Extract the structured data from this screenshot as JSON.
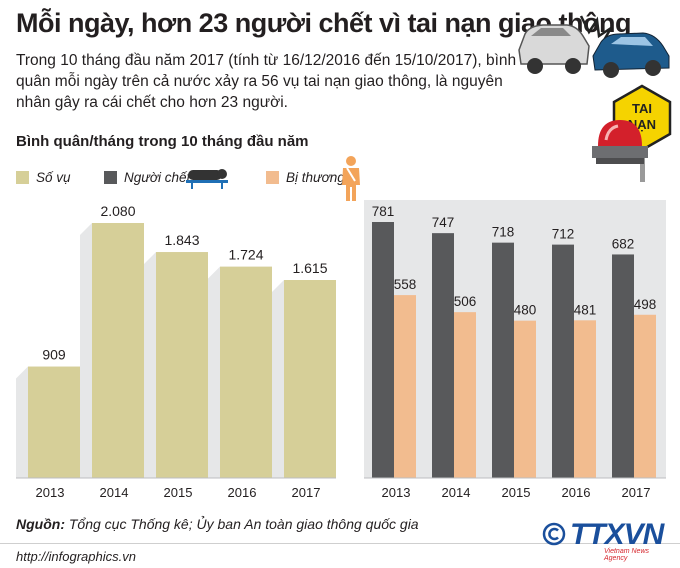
{
  "header": {
    "title": "Mỗi ngày, hơn 23 người chết vì tai nạn giao thông",
    "intro": "Trong 10 tháng đầu năm 2017 (tính từ 16/12/2016 đến 15/10/2017), bình quân mỗi ngày trên cả nước xảy ra 56 vụ tai nạn giao thông, là nguyên nhân gây ra cái chết cho hơn 23 người.",
    "subtitle": "Bình quân/tháng trong 10 tháng đầu năm"
  },
  "legend": {
    "so_vu": "Số vụ",
    "nguoi_chet": "Người chết",
    "bi_thuong": "Bị thương"
  },
  "sign": {
    "line1": "TAI",
    "line2": "NẠN"
  },
  "colors": {
    "so_vu": "#d6cf98",
    "nguoi_chet": "#58595b",
    "bi_thuong": "#f2bc8f",
    "panel": "#e6e7e8"
  },
  "chart_data": [
    {
      "type": "bar",
      "categories": [
        "2013",
        "2014",
        "2015",
        "2016",
        "2017"
      ],
      "series": [
        {
          "name": "Số vụ",
          "values": [
            909,
            2080,
            1843,
            1724,
            1615
          ],
          "labels": [
            "909",
            "2.080",
            "1.843",
            "1.724",
            "1.615"
          ]
        }
      ],
      "ylim": [
        0,
        2300
      ],
      "grid": false
    },
    {
      "type": "bar",
      "categories": [
        "2013",
        "2014",
        "2015",
        "2016",
        "2017"
      ],
      "series": [
        {
          "name": "Người chết",
          "values": [
            781,
            747,
            718,
            712,
            682
          ],
          "labels": [
            "781",
            "747",
            "718",
            "712",
            "682"
          ]
        },
        {
          "name": "Bị thương",
          "values": [
            558,
            506,
            480,
            481,
            498
          ],
          "labels": [
            "558",
            "506",
            "480",
            "481",
            "498"
          ]
        }
      ],
      "ylim": [
        0,
        860
      ],
      "grid": false
    }
  ],
  "footer": {
    "source_label": "Nguồn:",
    "source_text": " Tổng cục Thống kê; Ủy ban An toàn giao thông quốc gia",
    "url": "http://infographics.vn",
    "logo": "TTXVN",
    "logo_sub": "Vietnam News Agency"
  }
}
